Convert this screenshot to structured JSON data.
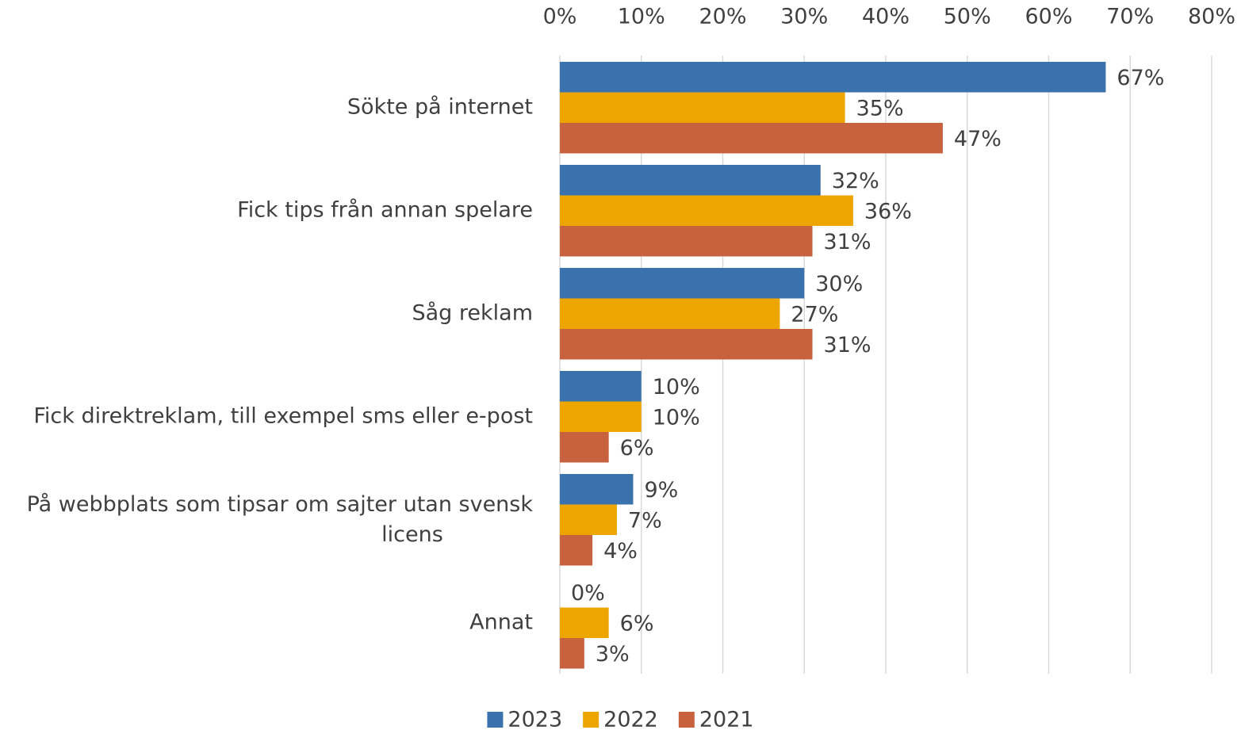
{
  "chart_data": {
    "type": "bar",
    "orientation": "horizontal",
    "categories": [
      "Sökte på internet",
      "Fick tips från annan spelare",
      "Såg reklam",
      "Fick direktreklam, till exempel sms eller e-post",
      "På webbplats som tipsar om sajter utan svensk licens",
      "Annat"
    ],
    "series": [
      {
        "name": "2023",
        "color": "#3a72ad",
        "values": [
          67,
          32,
          30,
          10,
          9,
          0
        ],
        "value_labels": [
          "67%",
          "32%",
          "30%",
          "10%",
          "9%",
          "0%"
        ]
      },
      {
        "name": "2022",
        "color": "#eda600",
        "values": [
          35,
          36,
          27,
          10,
          7,
          6
        ],
        "value_labels": [
          "35%",
          "36%",
          "27%",
          "10%",
          "7%",
          "6%"
        ]
      },
      {
        "name": "2021",
        "color": "#c8623e",
        "values": [
          47,
          31,
          31,
          6,
          4,
          3
        ],
        "value_labels": [
          "47%",
          "31%",
          "31%",
          "6%",
          "4%",
          "3%"
        ]
      }
    ],
    "xlim": [
      0,
      80
    ],
    "xticks": [
      {
        "value": 0,
        "label": "0%"
      },
      {
        "value": 10,
        "label": "10%"
      },
      {
        "value": 20,
        "label": "20%"
      },
      {
        "value": 30,
        "label": "30%"
      },
      {
        "value": 40,
        "label": "40%"
      },
      {
        "value": 50,
        "label": "50%"
      },
      {
        "value": 60,
        "label": "60%"
      },
      {
        "value": 70,
        "label": "70%"
      },
      {
        "value": 80,
        "label": "80%"
      }
    ],
    "grid": true,
    "legend": "bottom"
  }
}
